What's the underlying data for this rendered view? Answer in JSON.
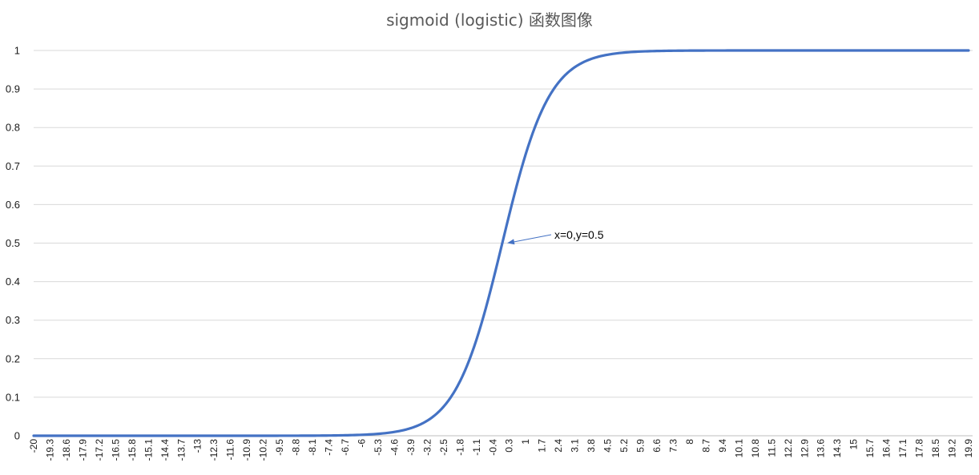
{
  "chart_data": {
    "type": "line",
    "title": "sigmoid (logistic) 函数图像",
    "xlabel": "",
    "ylabel": "",
    "ylim": [
      0,
      1
    ],
    "y_ticks": [
      "0",
      "0.1",
      "0.2",
      "0.3",
      "0.4",
      "0.5",
      "0.6",
      "0.7",
      "0.8",
      "0.9",
      "1"
    ],
    "x_start": -20,
    "x_end": 19.9,
    "x_step": 0.1,
    "x_tick_labels": [
      "-20",
      "-19.3",
      "-18.6",
      "-17.9",
      "-17.2",
      "-16.5",
      "-15.8",
      "-15.1",
      "-14.4",
      "-13.7",
      "-13",
      "-12.3",
      "-11.6",
      "-10.9",
      "-10.2",
      "-9.5",
      "-8.8",
      "-8.1",
      "-7.4",
      "-6.7",
      "-6",
      "-5.3",
      "-4.6",
      "-3.9",
      "-3.2",
      "-2.5",
      "-1.8",
      "-1.1",
      "-0.4",
      "0.3",
      "1",
      "1.7",
      "2.4",
      "3.1",
      "3.8",
      "4.5",
      "5.2",
      "5.9",
      "6.6",
      "7.3",
      "8",
      "8.7",
      "9.4",
      "10.1",
      "10.8",
      "11.5",
      "12.2",
      "12.9",
      "13.6",
      "14.3",
      "15",
      "15.7",
      "16.4",
      "17.1",
      "17.8",
      "18.5",
      "19.2",
      "19.9"
    ],
    "grid": true,
    "legend": "none",
    "series": [
      {
        "function": "1/(1+exp(-x))",
        "color": "#4472c4"
      }
    ],
    "annotation": {
      "text": "x=0,y=0.5",
      "x": 0,
      "y": 0.5
    }
  },
  "colors": {
    "grid": "#d9d9d9",
    "axis": "#bfbfbf",
    "line": "#4472c4",
    "title": "#595959"
  }
}
